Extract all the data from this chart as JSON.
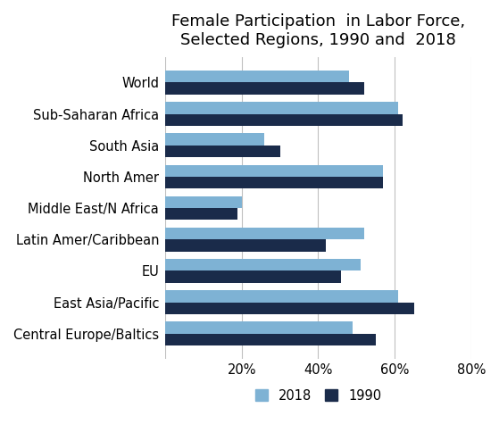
{
  "title": "Female Participation  in Labor Force,\nSelected Regions, 1990 and  2018",
  "categories": [
    "World",
    "Sub-Saharan Africa",
    "South Asia",
    "North Amer",
    "Middle East/N Africa",
    "Latin Amer/Caribbean",
    "EU",
    "East Asia/Pacific",
    "Central Europe/Baltics"
  ],
  "values_2018": [
    48,
    61,
    26,
    57,
    20,
    52,
    51,
    61,
    49
  ],
  "values_1990": [
    52,
    62,
    30,
    57,
    19,
    42,
    46,
    65,
    55
  ],
  "color_2018": "#7EB2D4",
  "color_1990": "#1A2B4A",
  "xlim": [
    0,
    80
  ],
  "xticks": [
    0,
    20,
    40,
    60,
    80
  ],
  "xticklabels": [
    "",
    "20%",
    "40%",
    "60%",
    "80%"
  ],
  "bar_height": 0.38,
  "title_fontsize": 13,
  "legend_labels": [
    "2018",
    "1990"
  ],
  "figsize": [
    5.59,
    4.94
  ],
  "dpi": 100
}
